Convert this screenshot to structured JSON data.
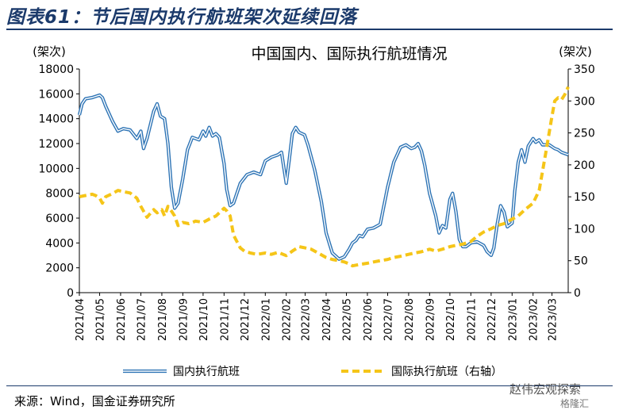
{
  "header": {
    "figure_title": "图表61：节后国内执行航班架次延续回落"
  },
  "footer": {
    "source": "来源：Wind，国金证券研究所",
    "watermark": "赵伟宏观探索",
    "watermark_small": "格隆汇"
  },
  "colors": {
    "domestic": "#2e74b5",
    "international": "#f5c518",
    "title": "#1b3a6b"
  },
  "chart_data": {
    "type": "line",
    "title": "中国国内、国际执行航班情况",
    "ylabel_left": "(架次)",
    "ylabel_right": "(架次)",
    "ylim_left": [
      0,
      18000
    ],
    "ylim_right": [
      0,
      350
    ],
    "yticks_left": [
      0,
      2000,
      4000,
      6000,
      8000,
      10000,
      12000,
      14000,
      16000,
      18000
    ],
    "yticks_right": [
      0,
      50,
      100,
      150,
      200,
      250,
      300,
      350
    ],
    "xlim": [
      "2021-04-01",
      "2023-03-25"
    ],
    "xticks": [
      "2021/04",
      "2021/05",
      "2021/06",
      "2021/07",
      "2021/08",
      "2021/09",
      "2021/10",
      "2021/11",
      "2021/12",
      "2022/01",
      "2022/02",
      "2022/03",
      "2022/04",
      "2022/05",
      "2022/06",
      "2022/07",
      "2022/08",
      "2022/09",
      "2022/10",
      "2022/11",
      "2022/12",
      "2023/01",
      "2023/02",
      "2023/03"
    ],
    "legend": {
      "position": "bottom"
    },
    "grid": false,
    "series": [
      {
        "name": "国内执行航班",
        "axis": "left",
        "style": "solid",
        "points": [
          [
            "2021-04-01",
            14300
          ],
          [
            "2021-04-05",
            15200
          ],
          [
            "2021-04-10",
            15600
          ],
          [
            "2021-04-20",
            15700
          ],
          [
            "2021-05-01",
            15900
          ],
          [
            "2021-05-05",
            15700
          ],
          [
            "2021-05-10",
            15000
          ],
          [
            "2021-05-20",
            13800
          ],
          [
            "2021-05-28",
            13000
          ],
          [
            "2021-06-05",
            13200
          ],
          [
            "2021-06-15",
            13100
          ],
          [
            "2021-06-25",
            12400
          ],
          [
            "2021-07-01",
            13000
          ],
          [
            "2021-07-05",
            11600
          ],
          [
            "2021-07-10",
            12400
          ],
          [
            "2021-07-20",
            14600
          ],
          [
            "2021-07-25",
            15200
          ],
          [
            "2021-07-30",
            14200
          ],
          [
            "2021-08-05",
            14000
          ],
          [
            "2021-08-10",
            12000
          ],
          [
            "2021-08-15",
            8500
          ],
          [
            "2021-08-20",
            6800
          ],
          [
            "2021-08-25",
            7200
          ],
          [
            "2021-09-01",
            9200
          ],
          [
            "2021-09-08",
            11500
          ],
          [
            "2021-09-15",
            12500
          ],
          [
            "2021-09-25",
            12300
          ],
          [
            "2021-10-01",
            13000
          ],
          [
            "2021-10-05",
            12600
          ],
          [
            "2021-10-10",
            13300
          ],
          [
            "2021-10-15",
            12600
          ],
          [
            "2021-10-20",
            12800
          ],
          [
            "2021-10-25",
            12500
          ],
          [
            "2021-11-01",
            10400
          ],
          [
            "2021-11-05",
            8300
          ],
          [
            "2021-11-10",
            7000
          ],
          [
            "2021-11-15",
            7200
          ],
          [
            "2021-11-25",
            8800
          ],
          [
            "2021-12-05",
            9500
          ],
          [
            "2021-12-15",
            9700
          ],
          [
            "2021-12-25",
            9500
          ],
          [
            "2022-01-01",
            10600
          ],
          [
            "2022-01-10",
            10900
          ],
          [
            "2022-01-20",
            11100
          ],
          [
            "2022-01-25",
            11300
          ],
          [
            "2022-02-01",
            8800
          ],
          [
            "2022-02-05",
            10500
          ],
          [
            "2022-02-10",
            12800
          ],
          [
            "2022-02-15",
            13300
          ],
          [
            "2022-02-20",
            12900
          ],
          [
            "2022-02-28",
            12700
          ],
          [
            "2022-03-05",
            11900
          ],
          [
            "2022-03-15",
            9900
          ],
          [
            "2022-03-25",
            7300
          ],
          [
            "2022-04-01",
            4800
          ],
          [
            "2022-04-10",
            3200
          ],
          [
            "2022-04-20",
            2700
          ],
          [
            "2022-04-28",
            2900
          ],
          [
            "2022-05-05",
            3500
          ],
          [
            "2022-05-10",
            4000
          ],
          [
            "2022-05-15",
            4200
          ],
          [
            "2022-05-20",
            4600
          ],
          [
            "2022-05-25",
            4500
          ],
          [
            "2022-06-01",
            5100
          ],
          [
            "2022-06-10",
            5200
          ],
          [
            "2022-06-20",
            5500
          ],
          [
            "2022-07-01",
            8500
          ],
          [
            "2022-07-10",
            10500
          ],
          [
            "2022-07-20",
            11700
          ],
          [
            "2022-07-28",
            11900
          ],
          [
            "2022-08-05",
            11600
          ],
          [
            "2022-08-10",
            11700
          ],
          [
            "2022-08-15",
            12000
          ],
          [
            "2022-08-20",
            11400
          ],
          [
            "2022-08-25",
            10200
          ],
          [
            "2022-09-01",
            8000
          ],
          [
            "2022-09-10",
            6200
          ],
          [
            "2022-09-15",
            4800
          ],
          [
            "2022-09-20",
            5400
          ],
          [
            "2022-09-25",
            5200
          ],
          [
            "2022-10-01",
            7500
          ],
          [
            "2022-10-05",
            8000
          ],
          [
            "2022-10-10",
            6500
          ],
          [
            "2022-10-15",
            4300
          ],
          [
            "2022-10-20",
            3700
          ],
          [
            "2022-10-25",
            3700
          ],
          [
            "2022-11-01",
            4000
          ],
          [
            "2022-11-10",
            4100
          ],
          [
            "2022-11-20",
            3800
          ],
          [
            "2022-11-25",
            3300
          ],
          [
            "2022-12-01",
            3000
          ],
          [
            "2022-12-05",
            3600
          ],
          [
            "2022-12-10",
            5500
          ],
          [
            "2022-12-15",
            7000
          ],
          [
            "2022-12-20",
            6500
          ],
          [
            "2022-12-25",
            5300
          ],
          [
            "2023-01-01",
            5600
          ],
          [
            "2023-01-05",
            8200
          ],
          [
            "2023-01-10",
            10500
          ],
          [
            "2023-01-15",
            11500
          ],
          [
            "2023-01-20",
            10500
          ],
          [
            "2023-01-25",
            11800
          ],
          [
            "2023-02-01",
            12400
          ],
          [
            "2023-02-05",
            12100
          ],
          [
            "2023-02-10",
            12300
          ],
          [
            "2023-02-15",
            11900
          ],
          [
            "2023-02-25",
            11900
          ],
          [
            "2023-03-05",
            11600
          ],
          [
            "2023-03-10",
            11500
          ],
          [
            "2023-03-15",
            11300
          ],
          [
            "2023-03-25",
            11100
          ]
        ]
      },
      {
        "name": "国际执行航班（右轴）",
        "axis": "right",
        "style": "dashed",
        "points": [
          [
            "2021-04-01",
            150
          ],
          [
            "2021-04-10",
            152
          ],
          [
            "2021-04-20",
            154
          ],
          [
            "2021-04-25",
            152
          ],
          [
            "2021-05-01",
            148
          ],
          [
            "2021-05-05",
            140
          ],
          [
            "2021-05-10",
            150
          ],
          [
            "2021-05-20",
            155
          ],
          [
            "2021-05-28",
            160
          ],
          [
            "2021-06-05",
            158
          ],
          [
            "2021-06-15",
            156
          ],
          [
            "2021-06-25",
            148
          ],
          [
            "2021-07-01",
            135
          ],
          [
            "2021-07-10",
            118
          ],
          [
            "2021-07-20",
            130
          ],
          [
            "2021-07-25",
            125
          ],
          [
            "2021-08-01",
            130
          ],
          [
            "2021-08-05",
            120
          ],
          [
            "2021-08-10",
            135
          ],
          [
            "2021-08-15",
            128
          ],
          [
            "2021-08-20",
            120
          ],
          [
            "2021-08-25",
            105
          ],
          [
            "2021-09-01",
            110
          ],
          [
            "2021-09-10",
            108
          ],
          [
            "2021-09-20",
            112
          ],
          [
            "2021-10-01",
            110
          ],
          [
            "2021-10-10",
            115
          ],
          [
            "2021-10-20",
            120
          ],
          [
            "2021-10-25",
            125
          ],
          [
            "2021-11-01",
            132
          ],
          [
            "2021-11-05",
            128
          ],
          [
            "2021-11-10",
            120
          ],
          [
            "2021-11-15",
            90
          ],
          [
            "2021-11-25",
            70
          ],
          [
            "2021-12-01",
            65
          ],
          [
            "2021-12-10",
            62
          ],
          [
            "2021-12-20",
            60
          ],
          [
            "2022-01-01",
            62
          ],
          [
            "2022-01-10",
            60
          ],
          [
            "2022-01-20",
            63
          ],
          [
            "2022-02-01",
            58
          ],
          [
            "2022-02-10",
            65
          ],
          [
            "2022-02-20",
            72
          ],
          [
            "2022-03-01",
            70
          ],
          [
            "2022-03-10",
            68
          ],
          [
            "2022-03-20",
            62
          ],
          [
            "2022-04-01",
            55
          ],
          [
            "2022-04-10",
            52
          ],
          [
            "2022-04-20",
            50
          ],
          [
            "2022-04-28",
            48
          ],
          [
            "2022-05-05",
            45
          ],
          [
            "2022-05-10",
            42
          ],
          [
            "2022-05-20",
            44
          ],
          [
            "2022-06-01",
            46
          ],
          [
            "2022-06-10",
            48
          ],
          [
            "2022-06-20",
            50
          ],
          [
            "2022-07-01",
            52
          ],
          [
            "2022-07-10",
            55
          ],
          [
            "2022-07-20",
            57
          ],
          [
            "2022-08-01",
            60
          ],
          [
            "2022-08-10",
            62
          ],
          [
            "2022-08-20",
            64
          ],
          [
            "2022-09-01",
            68
          ],
          [
            "2022-09-10",
            65
          ],
          [
            "2022-09-20",
            68
          ],
          [
            "2022-10-01",
            72
          ],
          [
            "2022-10-10",
            74
          ],
          [
            "2022-10-20",
            76
          ],
          [
            "2022-11-01",
            80
          ],
          [
            "2022-11-10",
            88
          ],
          [
            "2022-11-20",
            95
          ],
          [
            "2022-12-01",
            100
          ],
          [
            "2022-12-10",
            105
          ],
          [
            "2022-12-20",
            108
          ],
          [
            "2023-01-01",
            115
          ],
          [
            "2023-01-10",
            120
          ],
          [
            "2023-01-20",
            130
          ],
          [
            "2023-02-01",
            140
          ],
          [
            "2023-02-10",
            160
          ],
          [
            "2023-02-20",
            220
          ],
          [
            "2023-02-28",
            270
          ],
          [
            "2023-03-05",
            300
          ],
          [
            "2023-03-10",
            305
          ],
          [
            "2023-03-15",
            302
          ],
          [
            "2023-03-20",
            310
          ],
          [
            "2023-03-25",
            322
          ]
        ]
      }
    ]
  }
}
